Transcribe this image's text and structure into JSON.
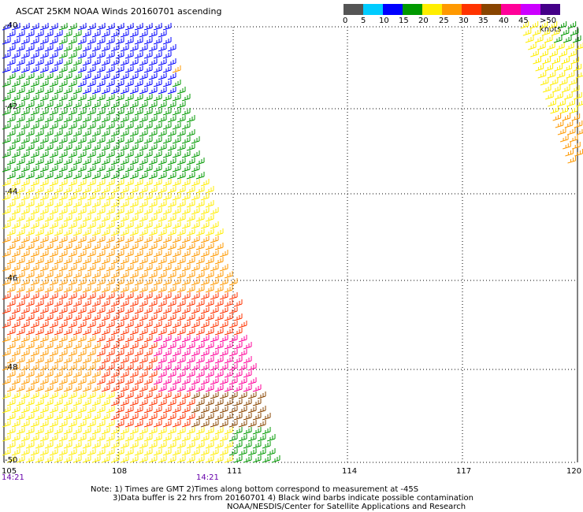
{
  "title": "ASCAT 25KM NOAA Winds 20160701 ascending",
  "legend": {
    "labels": [
      "0",
      "5",
      "10",
      "15",
      "20",
      "25",
      "30",
      "35",
      "40",
      "45",
      ">50 knots"
    ],
    "colors": [
      "#555555",
      "#00ccff",
      "#0000ff",
      "#009900",
      "#ffee00",
      "#ff9900",
      "#ff3300",
      "#884400",
      "#ff0099",
      "#cc00ff",
      "#440088"
    ]
  },
  "map": {
    "lat_labels": [
      "-40",
      "-42",
      "-44",
      "-46",
      "-48",
      "-50"
    ],
    "lon_labels": [
      "105",
      "108",
      "111",
      "114",
      "117",
      "120"
    ],
    "time_labels": [
      "14:21",
      "14:21"
    ]
  },
  "notes": {
    "line1": "Note: 1) Times are GMT 2)Times along bottom correspond to measurement at -45S",
    "line2": "3)Data buffer is 22 hrs from 20160701 4) Black wind barbs indicate possible contamination",
    "line3": "NOAA/NESDIS/Center for Satellite Applications and Research"
  }
}
